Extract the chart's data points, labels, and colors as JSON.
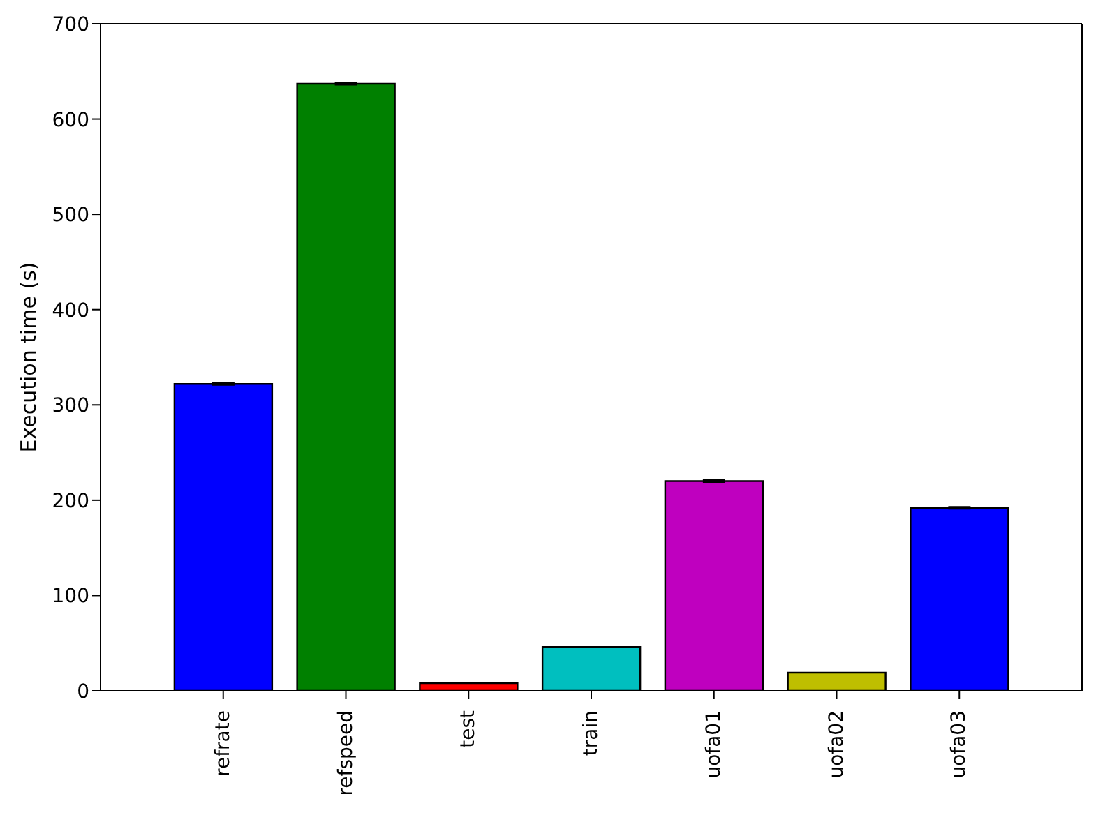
{
  "chart_data": {
    "type": "bar",
    "ylabel": "Execution time (s)",
    "categories": [
      "refrate",
      "refspeed",
      "test",
      "train",
      "uofa01",
      "uofa02",
      "uofa03"
    ],
    "values": [
      322,
      637,
      8,
      46,
      220,
      19,
      192
    ],
    "colors": [
      "#0000ff",
      "#008000",
      "#ff0000",
      "#00bfbf",
      "#bf00bf",
      "#bfbf00",
      "#0000ff"
    ],
    "errors": [
      1,
      1,
      null,
      null,
      1,
      null,
      1
    ],
    "ylim": [
      0,
      700
    ],
    "yticks": [
      0,
      100,
      200,
      300,
      400,
      500,
      600,
      700
    ],
    "grid": false
  }
}
